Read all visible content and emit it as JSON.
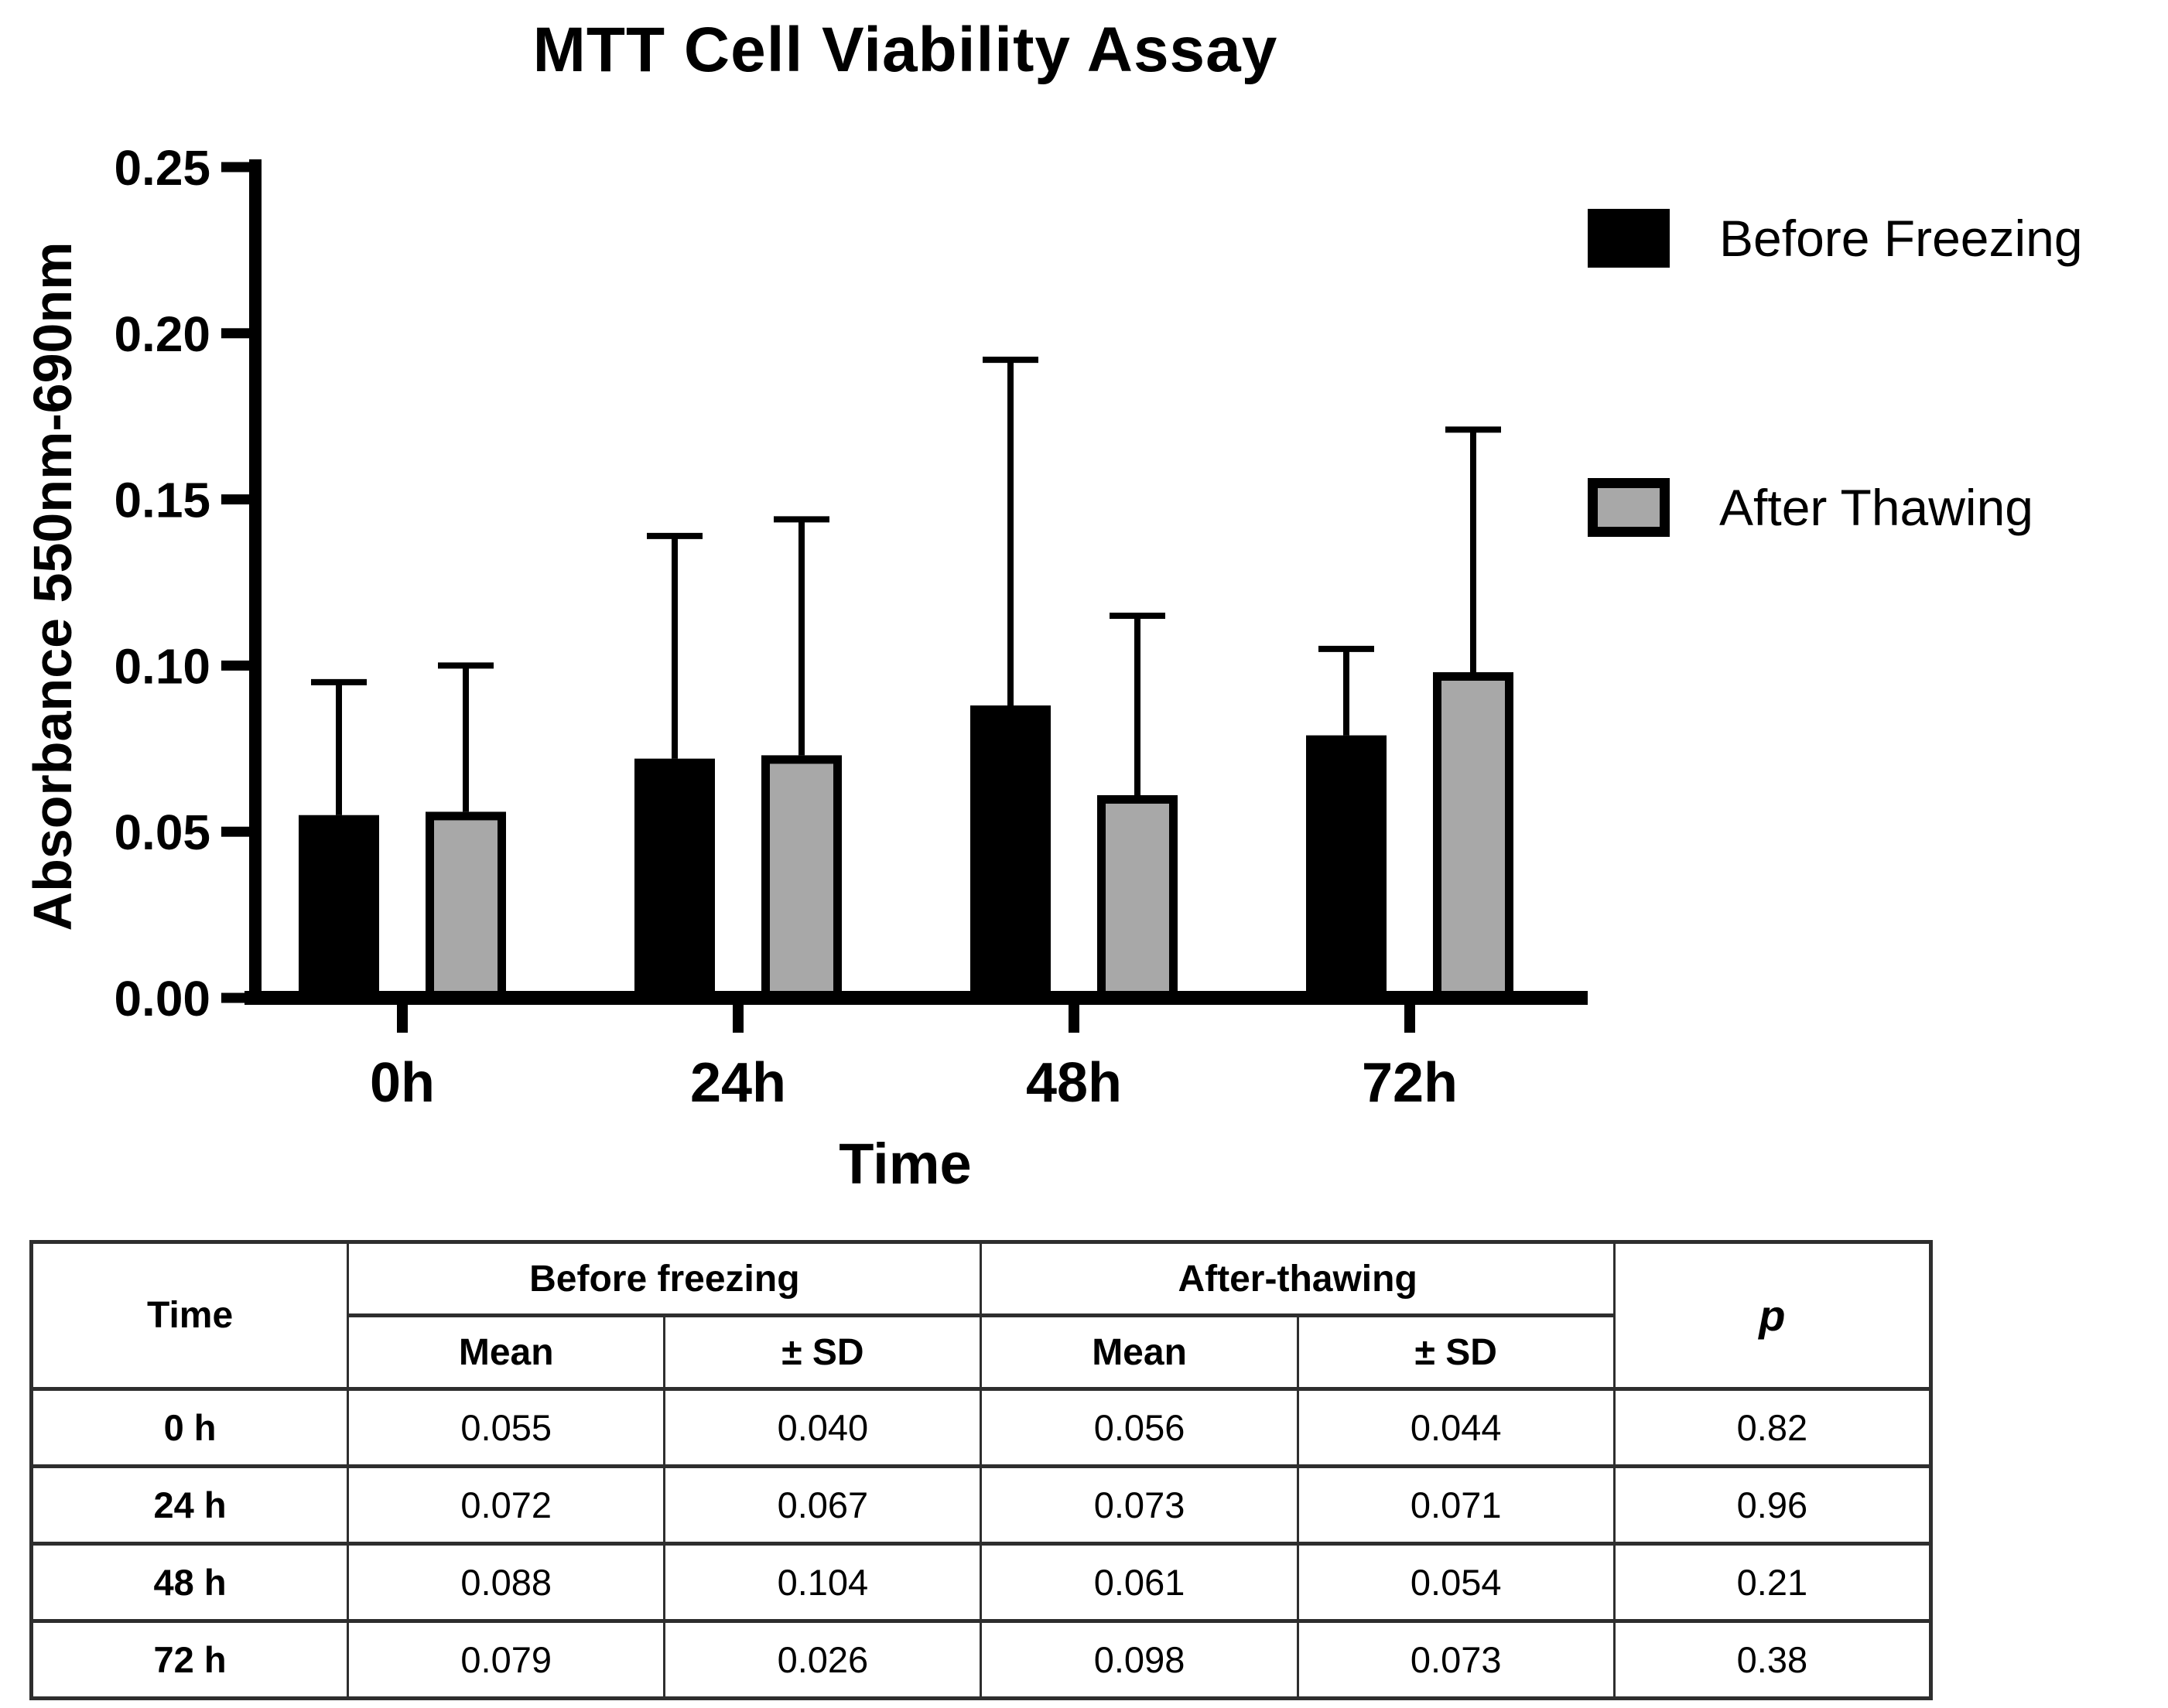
{
  "chart_data": {
    "type": "bar",
    "title": "MTT Cell Viability Assay",
    "xlabel": "Time",
    "ylabel": "Absorbance 550nm-690nm",
    "categories": [
      "0h",
      "24h",
      "48h",
      "72h"
    ],
    "ylim": [
      0,
      0.25
    ],
    "y_ticks": [
      "0.00",
      "0.05",
      "0.10",
      "0.15",
      "0.20",
      "0.25"
    ],
    "grid": false,
    "legend_position": "top-right",
    "error_bars": "upper SD whiskers with caps",
    "series": [
      {
        "name": "Before Freezing",
        "color": "#000000",
        "values": [
          0.055,
          0.072,
          0.088,
          0.079
        ],
        "sd": [
          0.04,
          0.067,
          0.104,
          0.026
        ]
      },
      {
        "name": "After Thawing",
        "color": "#a8a8a8",
        "values": [
          0.056,
          0.073,
          0.061,
          0.098
        ],
        "sd": [
          0.044,
          0.071,
          0.054,
          0.073
        ]
      }
    ]
  },
  "table": {
    "headers": {
      "time": "Time",
      "group_before": "Before freezing",
      "group_after": "After-thawing",
      "mean": "Mean",
      "sd": "± SD",
      "p": "p"
    },
    "rows": [
      {
        "time": "0 h",
        "before_mean": "0.055",
        "before_sd": "0.040",
        "after_mean": "0.056",
        "after_sd": "0.044",
        "p": "0.82"
      },
      {
        "time": "24 h",
        "before_mean": "0.072",
        "before_sd": "0.067",
        "after_mean": "0.073",
        "after_sd": "0.071",
        "p": "0.96"
      },
      {
        "time": "48 h",
        "before_mean": "0.088",
        "before_sd": "0.104",
        "after_mean": "0.061",
        "after_sd": "0.054",
        "p": "0.21"
      },
      {
        "time": "72 h",
        "before_mean": "0.079",
        "before_sd": "0.026",
        "after_mean": "0.098",
        "after_sd": "0.073",
        "p": "0.38"
      }
    ]
  },
  "colors": {
    "bar_before_freezing": "#000000",
    "bar_after_thawing": "#a8a8a8",
    "axis": "#000000",
    "table_border": "#2e2e2e",
    "text": "#000000"
  }
}
